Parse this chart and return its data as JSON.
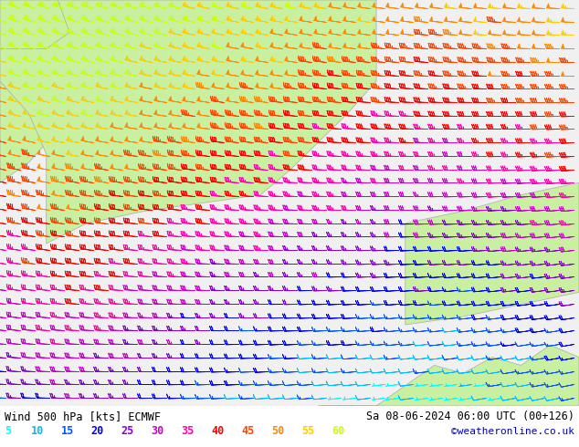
{
  "title_left": "Wind 500 hPa [kts] ECMWF",
  "title_right": "Sa 08-06-2024 06:00 UTC (00+126)",
  "credit": "©weatheronline.co.uk",
  "background_color": "#ffffff",
  "figsize": [
    6.34,
    4.9
  ],
  "dpi": 100,
  "legend_values": [
    "5",
    "10",
    "15",
    "20",
    "25",
    "30",
    "35",
    "40",
    "45",
    "50",
    "55",
    "60"
  ],
  "legend_colors": [
    "#00ffff",
    "#00bbff",
    "#0055ff",
    "#0000ff",
    "#8800cc",
    "#cc00cc",
    "#ff00aa",
    "#ff0000",
    "#ff4400",
    "#ff8800",
    "#ffcc00",
    "#ccff00"
  ],
  "speed_thresholds": [
    7,
    12,
    17,
    22,
    27,
    32,
    37,
    42,
    47,
    52,
    57
  ],
  "speed_colors": [
    "#00ffff",
    "#00bbff",
    "#0055ff",
    "#0000ff",
    "#8800cc",
    "#cc00cc",
    "#ff00aa",
    "#ff0000",
    "#ff4400",
    "#ff8800",
    "#ffcc00",
    "#ccff00"
  ],
  "title_fontsize": 8.5,
  "credit_fontsize": 8,
  "legend_fontsize": 8.5
}
